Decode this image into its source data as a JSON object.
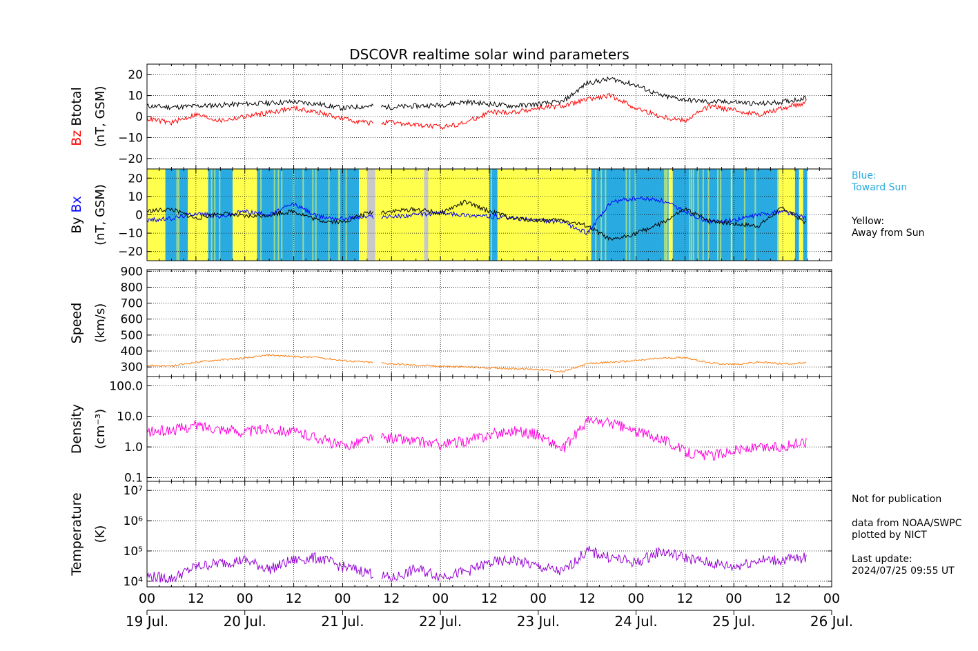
{
  "title": "DSCOVR realtime solar wind parameters",
  "notes": {
    "imf_blue": "Blue:\nToward Sun",
    "imf_yellow": "Yellow:\nAway from Sun",
    "not_for_publication": "Not for publication",
    "source": "data from NOAA/SWPC\nplotted by NICT",
    "last_update": "Last update:\n2024/07/25 09:55 UT"
  },
  "colors": {
    "btotal": "#000000",
    "bz": "#ff0000",
    "bx": "#0000ff",
    "by": "#000000",
    "speed": "#ff7f0e",
    "density": "#ff00dd",
    "temperature": "#9400d3",
    "imf_toward": "#29abe2",
    "imf_away": "#ffff4d",
    "imf_nodata": "#c8c8c8"
  },
  "chart_data": [
    {
      "type": "line",
      "id": "mag-bz",
      "ylabel_parts": [
        {
          "text": "Bz",
          "color": "#ff0000"
        },
        {
          "text": " Btotal",
          "color": "#000000"
        }
      ],
      "ylabel_unit": "(nT, GSM)",
      "ylim": [
        -25,
        25
      ],
      "yticks": [
        -20,
        -10,
        0,
        10,
        20
      ],
      "ytick_labels": [
        "−20",
        "−10",
        "0",
        "10",
        "20"
      ],
      "grid": true,
      "gaps": [
        [
          55.5,
          57.5
        ]
      ],
      "series": [
        {
          "name": "Btotal",
          "color": "#000000",
          "x": [
            0,
            6,
            12,
            18,
            24,
            30,
            36,
            42,
            48,
            54,
            60,
            66,
            72,
            78,
            84,
            90,
            96,
            102,
            108,
            114,
            120,
            126,
            132,
            138,
            144,
            150,
            156,
            162
          ],
          "y": [
            5,
            4.5,
            5,
            5.5,
            6,
            6.5,
            7,
            6,
            4,
            5,
            4.5,
            5,
            5.5,
            7,
            6,
            5,
            6,
            7,
            16,
            18,
            15,
            10,
            8,
            7,
            7,
            6,
            7,
            9
          ]
        },
        {
          "name": "Bz",
          "color": "#ff0000",
          "x": [
            0,
            6,
            12,
            18,
            24,
            30,
            36,
            42,
            48,
            54,
            60,
            66,
            72,
            78,
            84,
            90,
            96,
            102,
            108,
            114,
            120,
            126,
            132,
            138,
            144,
            150,
            156,
            162
          ],
          "y": [
            -1,
            -3,
            1,
            -2,
            0,
            2,
            4,
            2,
            -1,
            -3,
            -3,
            -4,
            -5,
            -3,
            2,
            2,
            4,
            5,
            8,
            10,
            4,
            0,
            -2,
            5,
            3,
            1,
            4,
            7
          ]
        }
      ]
    },
    {
      "type": "line",
      "id": "mag-bxby",
      "ylabel_parts": [
        {
          "text": "By ",
          "color": "#000000"
        },
        {
          "text": "Bx",
          "color": "#0000ff"
        }
      ],
      "ylabel_unit": "(nT, GSM)",
      "ylim": [
        -25,
        25
      ],
      "yticks": [
        -20,
        -10,
        0,
        10,
        20
      ],
      "ytick_labels": [
        "−20",
        "−10",
        "0",
        "10",
        "20"
      ],
      "grid": true,
      "gaps": [
        [
          55.5,
          57.5
        ]
      ],
      "imf_sectors": [
        {
          "from": 0,
          "to": 4.5,
          "dir": "away"
        },
        {
          "from": 4.5,
          "to": 10,
          "dir": "toward"
        },
        {
          "from": 10,
          "to": 15,
          "dir": "away"
        },
        {
          "from": 15,
          "to": 21,
          "dir": "toward"
        },
        {
          "from": 21,
          "to": 27,
          "dir": "away"
        },
        {
          "from": 27,
          "to": 37,
          "dir": "toward"
        },
        {
          "from": 37,
          "to": 52,
          "dir": "toward"
        },
        {
          "from": 52,
          "to": 54,
          "dir": "away"
        },
        {
          "from": 54,
          "to": 56,
          "dir": "nodata"
        },
        {
          "from": 56,
          "to": 57,
          "dir": "away"
        },
        {
          "from": 57,
          "to": 68,
          "dir": "away"
        },
        {
          "from": 68,
          "to": 69,
          "dir": "nodata"
        },
        {
          "from": 69,
          "to": 84,
          "dir": "away"
        },
        {
          "from": 84,
          "to": 86,
          "dir": "toward"
        },
        {
          "from": 86,
          "to": 109,
          "dir": "away"
        },
        {
          "from": 109,
          "to": 128,
          "dir": "toward"
        },
        {
          "from": 128,
          "to": 129,
          "dir": "away"
        },
        {
          "from": 129,
          "to": 155,
          "dir": "toward"
        },
        {
          "from": 155,
          "to": 159,
          "dir": "away"
        },
        {
          "from": 159,
          "to": 160,
          "dir": "toward"
        },
        {
          "from": 160,
          "to": 161,
          "dir": "away"
        },
        {
          "from": 161,
          "to": 162,
          "dir": "toward"
        }
      ],
      "series": [
        {
          "name": "Bx",
          "color": "#0000ff",
          "x": [
            0,
            6,
            12,
            18,
            24,
            30,
            36,
            42,
            48,
            54,
            60,
            66,
            72,
            78,
            84,
            90,
            96,
            102,
            108,
            114,
            120,
            126,
            132,
            138,
            144,
            150,
            156,
            162
          ],
          "y": [
            -3,
            -2,
            1,
            -1,
            2,
            0,
            6,
            -1,
            -2,
            -1,
            -1,
            0,
            1,
            0,
            -1,
            -2,
            -3,
            -4,
            -10,
            7,
            9,
            8,
            2,
            -4,
            -3,
            0,
            2,
            -2
          ]
        },
        {
          "name": "By",
          "color": "#000000",
          "x": [
            0,
            6,
            12,
            18,
            24,
            30,
            36,
            42,
            48,
            54,
            60,
            66,
            72,
            78,
            84,
            90,
            96,
            102,
            108,
            114,
            120,
            126,
            132,
            138,
            144,
            150,
            156,
            162
          ],
          "y": [
            2,
            3,
            -2,
            1,
            -1,
            0,
            2,
            -3,
            -4,
            1,
            2,
            3,
            1,
            7,
            2,
            -2,
            -3,
            -3,
            -6,
            -14,
            -10,
            -5,
            3,
            -3,
            -5,
            -6,
            4,
            -5
          ]
        }
      ]
    },
    {
      "type": "line",
      "id": "speed",
      "ylabel": "Speed",
      "ylabel_unit": "(km/s)",
      "ylim": [
        240,
        910
      ],
      "yticks": [
        300,
        400,
        500,
        600,
        700,
        800,
        900
      ],
      "ytick_labels": [
        "300",
        "400",
        "500",
        "600",
        "700",
        "800",
        "900"
      ],
      "grid": true,
      "gaps": [
        [
          55.5,
          57.5
        ]
      ],
      "series": [
        {
          "name": "Speed",
          "color": "#ff7f0e",
          "x": [
            0,
            6,
            12,
            18,
            24,
            30,
            36,
            42,
            48,
            54,
            60,
            66,
            72,
            78,
            84,
            90,
            96,
            102,
            108,
            114,
            120,
            126,
            132,
            138,
            144,
            150,
            156,
            162
          ],
          "y": [
            310,
            305,
            330,
            345,
            355,
            375,
            365,
            360,
            340,
            330,
            320,
            310,
            305,
            300,
            295,
            290,
            285,
            270,
            320,
            330,
            340,
            355,
            360,
            325,
            315,
            330,
            320,
            325
          ]
        }
      ]
    },
    {
      "type": "line",
      "id": "density",
      "ylabel": "Density",
      "ylabel_unit": "(cm⁻³)",
      "yscale": "log",
      "ylim": [
        0.075,
        200
      ],
      "yticks": [
        0.1,
        1,
        10,
        100
      ],
      "ytick_labels": [
        "0.1",
        "1.0",
        "10.0",
        "100.0"
      ],
      "grid": true,
      "gaps": [
        [
          55.5,
          57.5
        ]
      ],
      "series": [
        {
          "name": "Density",
          "color": "#ff00dd",
          "x": [
            0,
            6,
            12,
            18,
            24,
            30,
            36,
            42,
            48,
            54,
            60,
            66,
            72,
            78,
            84,
            90,
            96,
            102,
            108,
            114,
            120,
            126,
            132,
            138,
            144,
            150,
            156,
            162
          ],
          "y": [
            3,
            3.5,
            5,
            4,
            3,
            4,
            3,
            2,
            1,
            1.8,
            2,
            1.5,
            1.2,
            1.5,
            2.5,
            3.5,
            2.5,
            0.8,
            7,
            6,
            3,
            2,
            0.7,
            0.5,
            0.8,
            0.9,
            1,
            1.5
          ]
        }
      ]
    },
    {
      "type": "line",
      "id": "temperature",
      "ylabel": "Temperature",
      "ylabel_unit": "(K)",
      "yscale": "log",
      "ylim": [
        6500,
        20000000
      ],
      "yticks": [
        10000,
        100000,
        1000000,
        10000000
      ],
      "ytick_labels": [
        "10⁴",
        "10⁵",
        "10⁶",
        "10⁷"
      ],
      "grid": true,
      "gaps": [
        [
          55.5,
          57.5
        ]
      ],
      "series": [
        {
          "name": "Temperature",
          "color": "#9400d3",
          "x": [
            0,
            6,
            12,
            18,
            24,
            30,
            36,
            42,
            48,
            54,
            60,
            66,
            72,
            78,
            84,
            90,
            96,
            102,
            108,
            114,
            120,
            126,
            132,
            138,
            144,
            150,
            156,
            162
          ],
          "y": [
            15000,
            12000,
            30000,
            40000,
            50000,
            25000,
            50000,
            60000,
            30000,
            20000,
            12000,
            25000,
            15000,
            20000,
            40000,
            50000,
            30000,
            20000,
            100000,
            60000,
            40000,
            100000,
            60000,
            40000,
            30000,
            50000,
            50000,
            60000
          ]
        }
      ]
    }
  ],
  "x_axis": {
    "range_hours": [
      0,
      168
    ],
    "hour_ticks": [
      0,
      12,
      24,
      36,
      48,
      60,
      72,
      84,
      96,
      108,
      120,
      132,
      144,
      156,
      168
    ],
    "hour_tick_labels": [
      "00",
      "12",
      "00",
      "12",
      "00",
      "12",
      "00",
      "12",
      "00",
      "12",
      "00",
      "12",
      "00",
      "12",
      "00"
    ],
    "date_ticks": [
      0,
      24,
      48,
      72,
      96,
      120,
      144,
      168
    ],
    "date_labels": [
      "19 Jul.",
      "20 Jul.",
      "21 Jul.",
      "22 Jul.",
      "23 Jul.",
      "24 Jul.",
      "25 Jul.",
      "26 Jul."
    ]
  }
}
